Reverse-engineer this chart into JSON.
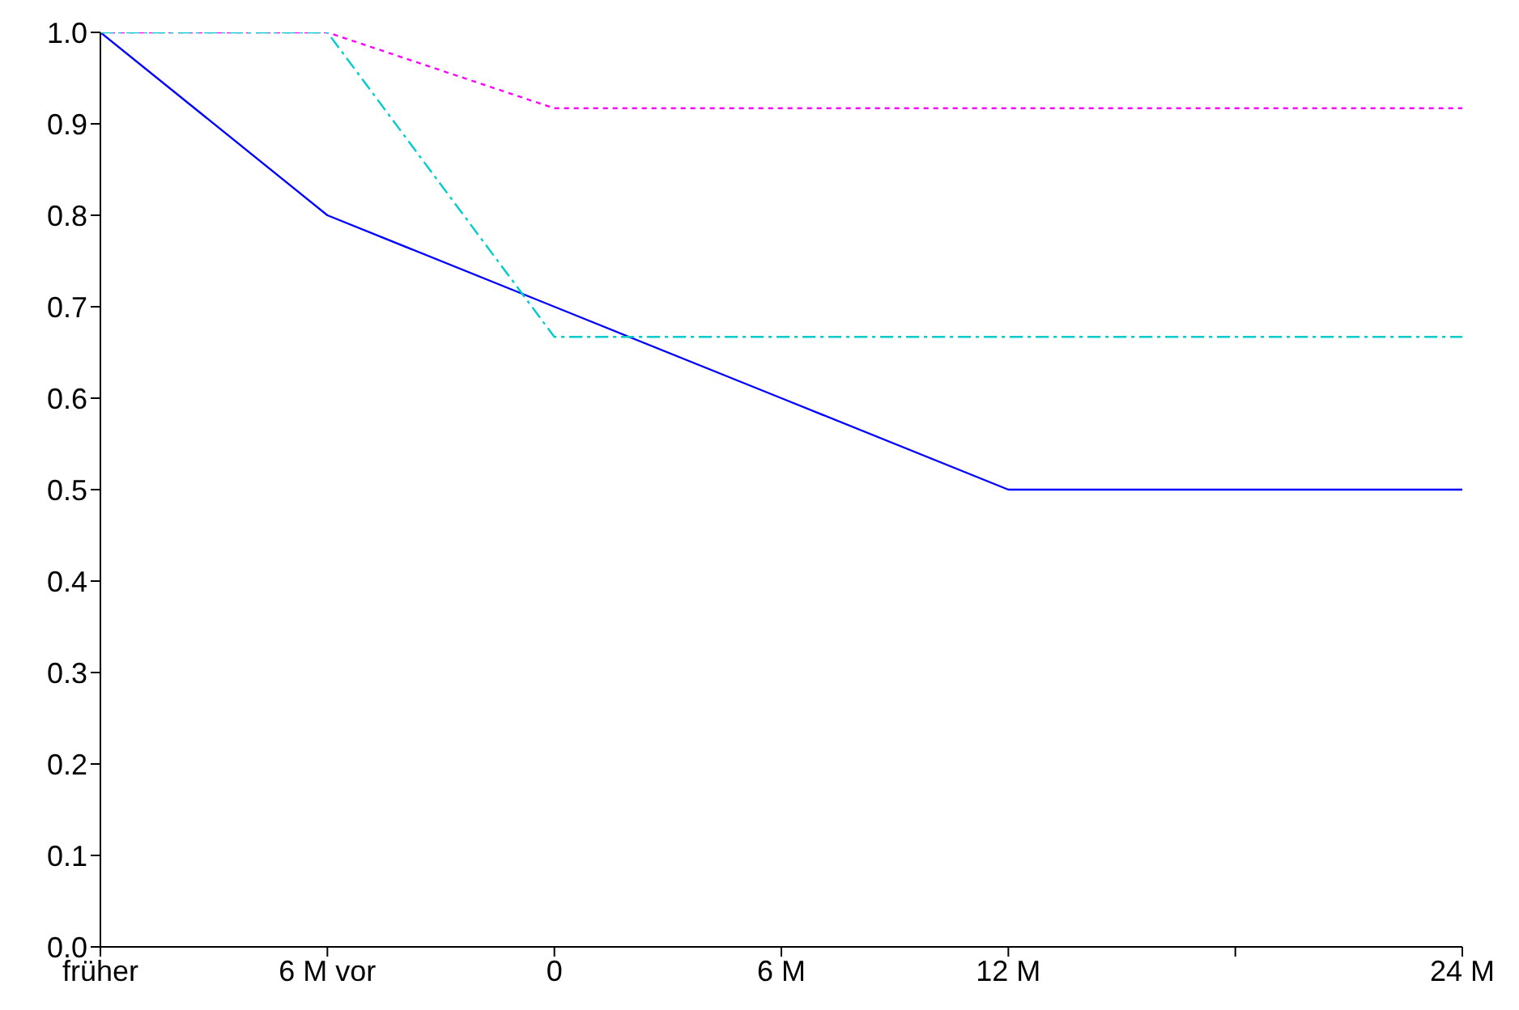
{
  "chart_data": {
    "type": "line",
    "categories": [
      "früher",
      "6 M vor",
      "0",
      "6 M",
      "12 M",
      null,
      "24 M"
    ],
    "series": [
      {
        "color": "#0000ff",
        "line_style": "solid",
        "values": [
          1.0,
          0.8,
          0.7,
          0.6,
          0.5,
          0.5,
          0.5
        ]
      },
      {
        "color": "#ff00ff",
        "line_style": "dotted",
        "values": [
          1.0,
          1.0,
          0.917,
          0.917,
          0.917,
          0.917,
          0.917
        ]
      },
      {
        "color": "#00cccc",
        "line_style": "dashed",
        "values": [
          1.0,
          1.0,
          0.667,
          0.667,
          0.667,
          0.667,
          0.667
        ]
      }
    ],
    "ylim": [
      0,
      1.0
    ],
    "yticks": [
      {
        "value": 0,
        "label": "0.0"
      },
      0.1,
      0.2,
      0.3,
      0.4,
      0.5,
      0.6,
      0.7,
      0.8,
      0.9,
      {
        "value": 1,
        "label": "1.0"
      }
    ],
    "grid": false,
    "marker": "none"
  }
}
